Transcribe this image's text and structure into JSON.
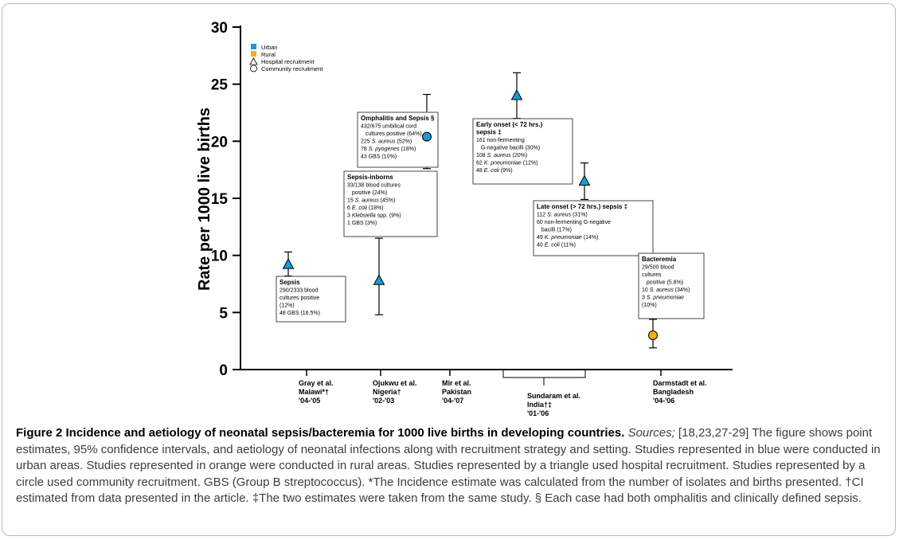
{
  "chart_data": {
    "type": "scatter",
    "ylabel": "Rate per 1000 live births",
    "ylim": [
      0,
      30
    ],
    "yticks": [
      0,
      5,
      10,
      15,
      20,
      25,
      30
    ],
    "legend": {
      "placement": "top-left",
      "items": [
        {
          "label": "Urban",
          "symbol": "square",
          "color": "#1b9ad6"
        },
        {
          "label": "Rural",
          "symbol": "square",
          "color": "#f2ae16"
        },
        {
          "label": "Hospital recruitment",
          "symbol": "triangle-outline"
        },
        {
          "label": "Community recruitment",
          "symbol": "circle-outline"
        }
      ]
    },
    "colors": {
      "urban": "#1b9ad6",
      "rural": "#f2ae16"
    },
    "categories": [
      {
        "lines": [
          "Gray et al.",
          "Malawi*†",
          "'04-'05"
        ]
      },
      {
        "lines": [
          "Ojukwu et al.",
          "Nigeria†",
          "'02-'03"
        ]
      },
      {
        "lines": [
          "Mir et al.",
          "Pakistan",
          "'04-'07"
        ]
      },
      {
        "lines": [
          "Sundaram et al.",
          "India†‡",
          "'01-'06"
        ],
        "bracket": true
      },
      {
        "lines": [
          "Darmstadt et al.",
          "Bangladesh",
          "'04-'06"
        ]
      }
    ],
    "points": [
      {
        "study": "Gray et al.",
        "y": 9.2,
        "ci": [
          8.2,
          10.3
        ],
        "setting": "urban",
        "marker": "triangle"
      },
      {
        "study": "Ojukwu et al.",
        "y": 7.8,
        "ci": [
          4.8,
          11.5
        ],
        "setting": "urban",
        "marker": "triangle"
      },
      {
        "study": "Mir et al.",
        "y": 20.4,
        "ci": [
          17.6,
          24.1
        ],
        "setting": "urban",
        "marker": "circle"
      },
      {
        "study": "Sundaram et al. (early onset)",
        "y": 24.0,
        "ci": [
          22.0,
          26.0
        ],
        "setting": "urban",
        "marker": "triangle"
      },
      {
        "study": "Sundaram et al. (late onset)",
        "y": 16.5,
        "ci": [
          14.9,
          18.1
        ],
        "setting": "urban",
        "marker": "triangle"
      },
      {
        "study": "Darmstadt et al.",
        "y": 3.0,
        "ci": [
          1.9,
          4.4
        ],
        "setting": "rural",
        "marker": "circle"
      }
    ],
    "annotations": [
      {
        "title": "Sepsis",
        "lines": [
          [
            "290/2333 blood"
          ],
          [
            "cultures positive"
          ],
          [
            "(12%)"
          ],
          [
            "48 GBS (16.5%)"
          ]
        ]
      },
      {
        "title": "Sepsis-inborns",
        "lines": [
          [
            "33/138 blood cultures"
          ],
          [
            "   positive (24%)"
          ],
          [
            "15 ",
            {
              "i": "S. aureus"
            },
            " (45%)"
          ],
          [
            "6 ",
            {
              "i": "E. coli"
            },
            " (18%)"
          ],
          [
            "3 ",
            {
              "i": "Klebsiella"
            },
            " spp. (9%)"
          ],
          [
            "1 GBS (3%)"
          ]
        ]
      },
      {
        "title": "Omphalitis and Sepsis §",
        "lines": [
          [
            "432/675 umbilical cord"
          ],
          [
            "   cultures positive (64%)"
          ],
          [
            "225 ",
            {
              "i": "S. aureus"
            },
            " (52%)"
          ],
          [
            "78 ",
            {
              "i": "S. pyogenes"
            },
            " (18%)"
          ],
          [
            "43 GBS (10%)"
          ]
        ]
      },
      {
        "title": "Early onset (< 72 hrs.)",
        "title2": "sepsis ‡",
        "lines": [
          [
            "161 non-fermenting"
          ],
          [
            "   G-negative bacilli (30%)"
          ],
          [
            "108 ",
            {
              "i": "S. aureus"
            },
            " (20%)"
          ],
          [
            "62 ",
            {
              "i": "K. pneumoniae"
            },
            " (12%)"
          ],
          [
            "48 ",
            {
              "i": "E. coli"
            },
            " (9%)"
          ]
        ]
      },
      {
        "title": "Late onset (> 72 hrs.) sepsis ‡",
        "lines": [
          [
            "112 ",
            {
              "i": "S. aureus"
            },
            " (31%)"
          ],
          [
            "60 non-fermenting G-negative"
          ],
          [
            "   bacilli (17%)"
          ],
          [
            "49 ",
            {
              "i": "K. pneumoniae"
            },
            " (14%)"
          ],
          [
            "40 ",
            {
              "i": "E. coli"
            },
            " (11%)"
          ]
        ]
      },
      {
        "title": "Bacteremia",
        "lines": [
          [
            "29/500 blood"
          ],
          [
            "cultures"
          ],
          [
            "   positive (5.8%)"
          ],
          [
            "10 ",
            {
              "i": "S. aureus"
            },
            " (34%)"
          ],
          [
            "3 ",
            {
              "i": "S. pneumoniae"
            }
          ],
          [
            "(10%)"
          ]
        ]
      }
    ]
  },
  "caption": {
    "lead": "Figure 2 Incidence and aetiology of neonatal sepsis/bacteremia for 1000 live births in developing countries.",
    "sources_label": "Sources;",
    "body": " [18,23,27-29] The figure shows point estimates, 95% confidence intervals, and aetiology of neonatal infections along with recruitment strategy and setting. Studies represented in blue were conducted in urban areas. Studies represented in orange were conducted in rural areas. Studies represented by a triangle used hospital recruitment. Studies represented by a circle used community recruitment. GBS (Group B streptococcus). *The Incidence estimate was calculated from the number of isolates and births presented. †CI estimated from data presented in the article. ‡The two estimates were taken from the same study. § Each case had both omphalitis and clinically defined sepsis."
  }
}
